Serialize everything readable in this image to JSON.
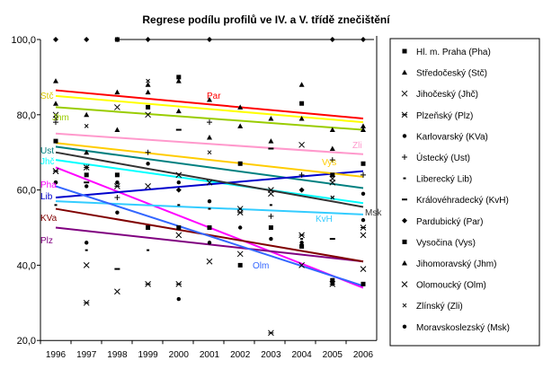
{
  "chart_data": {
    "type": "scatter",
    "title": "Regrese podílu profilů ve IV. a V. třídě znečištění",
    "xlabel": "",
    "ylabel": "",
    "x": [
      1996,
      1997,
      1998,
      1999,
      2000,
      2001,
      2002,
      2003,
      2004,
      2005,
      2006
    ],
    "ylim": [
      20,
      100
    ],
    "yticks": [
      "20,0",
      "40,0",
      "60,0",
      "80,0",
      "100,0"
    ],
    "ytick_values": [
      20,
      40,
      60,
      80,
      100
    ],
    "grid": false,
    "legend_position": "right",
    "series": [
      {
        "name": "Hl. m. Praha (Pha)",
        "short": "Pha",
        "marker": "square",
        "color": "#ff00ff",
        "trend": [
          66,
          34
        ],
        "values": [
          73,
          64,
          64,
          50,
          50,
          50,
          40,
          50,
          45,
          36,
          35
        ]
      },
      {
        "name": "Středočeský (Stč)",
        "short": "Stč",
        "marker": "triangle",
        "color": "#ffff00",
        "trend": [
          85,
          78
        ],
        "values": [
          89,
          80,
          86,
          86,
          81,
          84,
          82,
          79,
          88,
          76,
          77
        ]
      },
      {
        "name": "Jihočeský (Jhč)",
        "short": "Jhč",
        "marker": "x",
        "color": "#00ffff",
        "trend": [
          68,
          56.5
        ],
        "values": [
          80,
          66,
          82,
          80,
          64,
          62,
          55,
          59,
          72,
          63,
          48
        ]
      },
      {
        "name": "Plzeňský (Plz)",
        "short": "Plz",
        "marker": "asterisk",
        "color": "#800080",
        "trend": [
          50,
          41
        ],
        "values": [
          65,
          30,
          61,
          35,
          35,
          null,
          54,
          22,
          48,
          35,
          50
        ]
      },
      {
        "name": "Karlovarský (KVa)",
        "short": "KVa",
        "marker": "dot",
        "color": "#800000",
        "trend": [
          55,
          41
        ],
        "values": [
          62,
          46,
          54,
          50,
          31,
          46,
          50,
          47,
          46,
          35,
          52
        ]
      },
      {
        "name": "Ústecký (Ust)",
        "short": "Ust",
        "marker": "plus",
        "color": "#008080",
        "trend": [
          71.5,
          60.5
        ],
        "values": [
          78,
          66,
          58,
          70,
          null,
          78,
          null,
          53,
          64,
          68,
          64
        ]
      },
      {
        "name": "Liberecký Lib)",
        "short": "Lib",
        "marker": "dash",
        "color": "#0000cc",
        "trend": [
          58,
          65
        ],
        "values": [
          56,
          44,
          null,
          44,
          56,
          55,
          55,
          56,
          47,
          58,
          50
        ]
      },
      {
        "name": "Královéhradecký (KvH)",
        "short": "KvH",
        "marker": "bar",
        "color": "#33ccff",
        "trend": [
          57,
          53.5
        ],
        "values": [
          null,
          62,
          39,
          null,
          76,
          null,
          null,
          71,
          null,
          47,
          null
        ]
      },
      {
        "name": "Pardubický (Par)",
        "short": "Par",
        "marker": "diamond",
        "color": "#ff0000",
        "trend": [
          86.5,
          79
        ],
        "values": [
          100,
          100,
          100,
          100,
          60,
          100,
          null,
          null,
          60,
          100,
          100
        ]
      },
      {
        "name": "Vysočina (Vys)",
        "short": "Vys",
        "marker": "square",
        "color": "#ffcc00",
        "trend": [
          72.5,
          63.5
        ],
        "values": [
          null,
          null,
          100,
          82,
          90,
          null,
          67,
          null,
          83,
          64,
          67
        ]
      },
      {
        "name": "Jihomoravský (Jhm)",
        "short": "Jhm",
        "marker": "triangle",
        "color": "#99cc00",
        "trend": [
          82,
          76
        ],
        "values": [
          83,
          70,
          76,
          88,
          89,
          74,
          77,
          73,
          79,
          71,
          76
        ]
      },
      {
        "name": "Olomoucký (Olm)",
        "short": "Olm",
        "marker": "x",
        "color": "#3366ff",
        "trend": [
          61,
          34.5
        ],
        "values": [
          65,
          40,
          33,
          61,
          48,
          41,
          43,
          60,
          40,
          62,
          39
        ]
      },
      {
        "name": "Zlínský (Zli)",
        "short": "Zli",
        "marker": "smallx",
        "color": "#ff99cc",
        "trend": [
          75,
          69.5
        ],
        "values": [
          79,
          77,
          null,
          89,
          null,
          70,
          null,
          null,
          null,
          58,
          null
        ]
      },
      {
        "name": "Moravskoslezský (Msk)",
        "short": "Msk",
        "marker": "dot",
        "color": "#333333",
        "trend": [
          70,
          55.5
        ],
        "values": [
          62,
          61,
          62,
          67,
          62,
          57,
          null,
          null,
          60,
          null,
          59
        ]
      }
    ],
    "topline": {
      "value": 100,
      "from": 1998,
      "to": 2006
    }
  }
}
